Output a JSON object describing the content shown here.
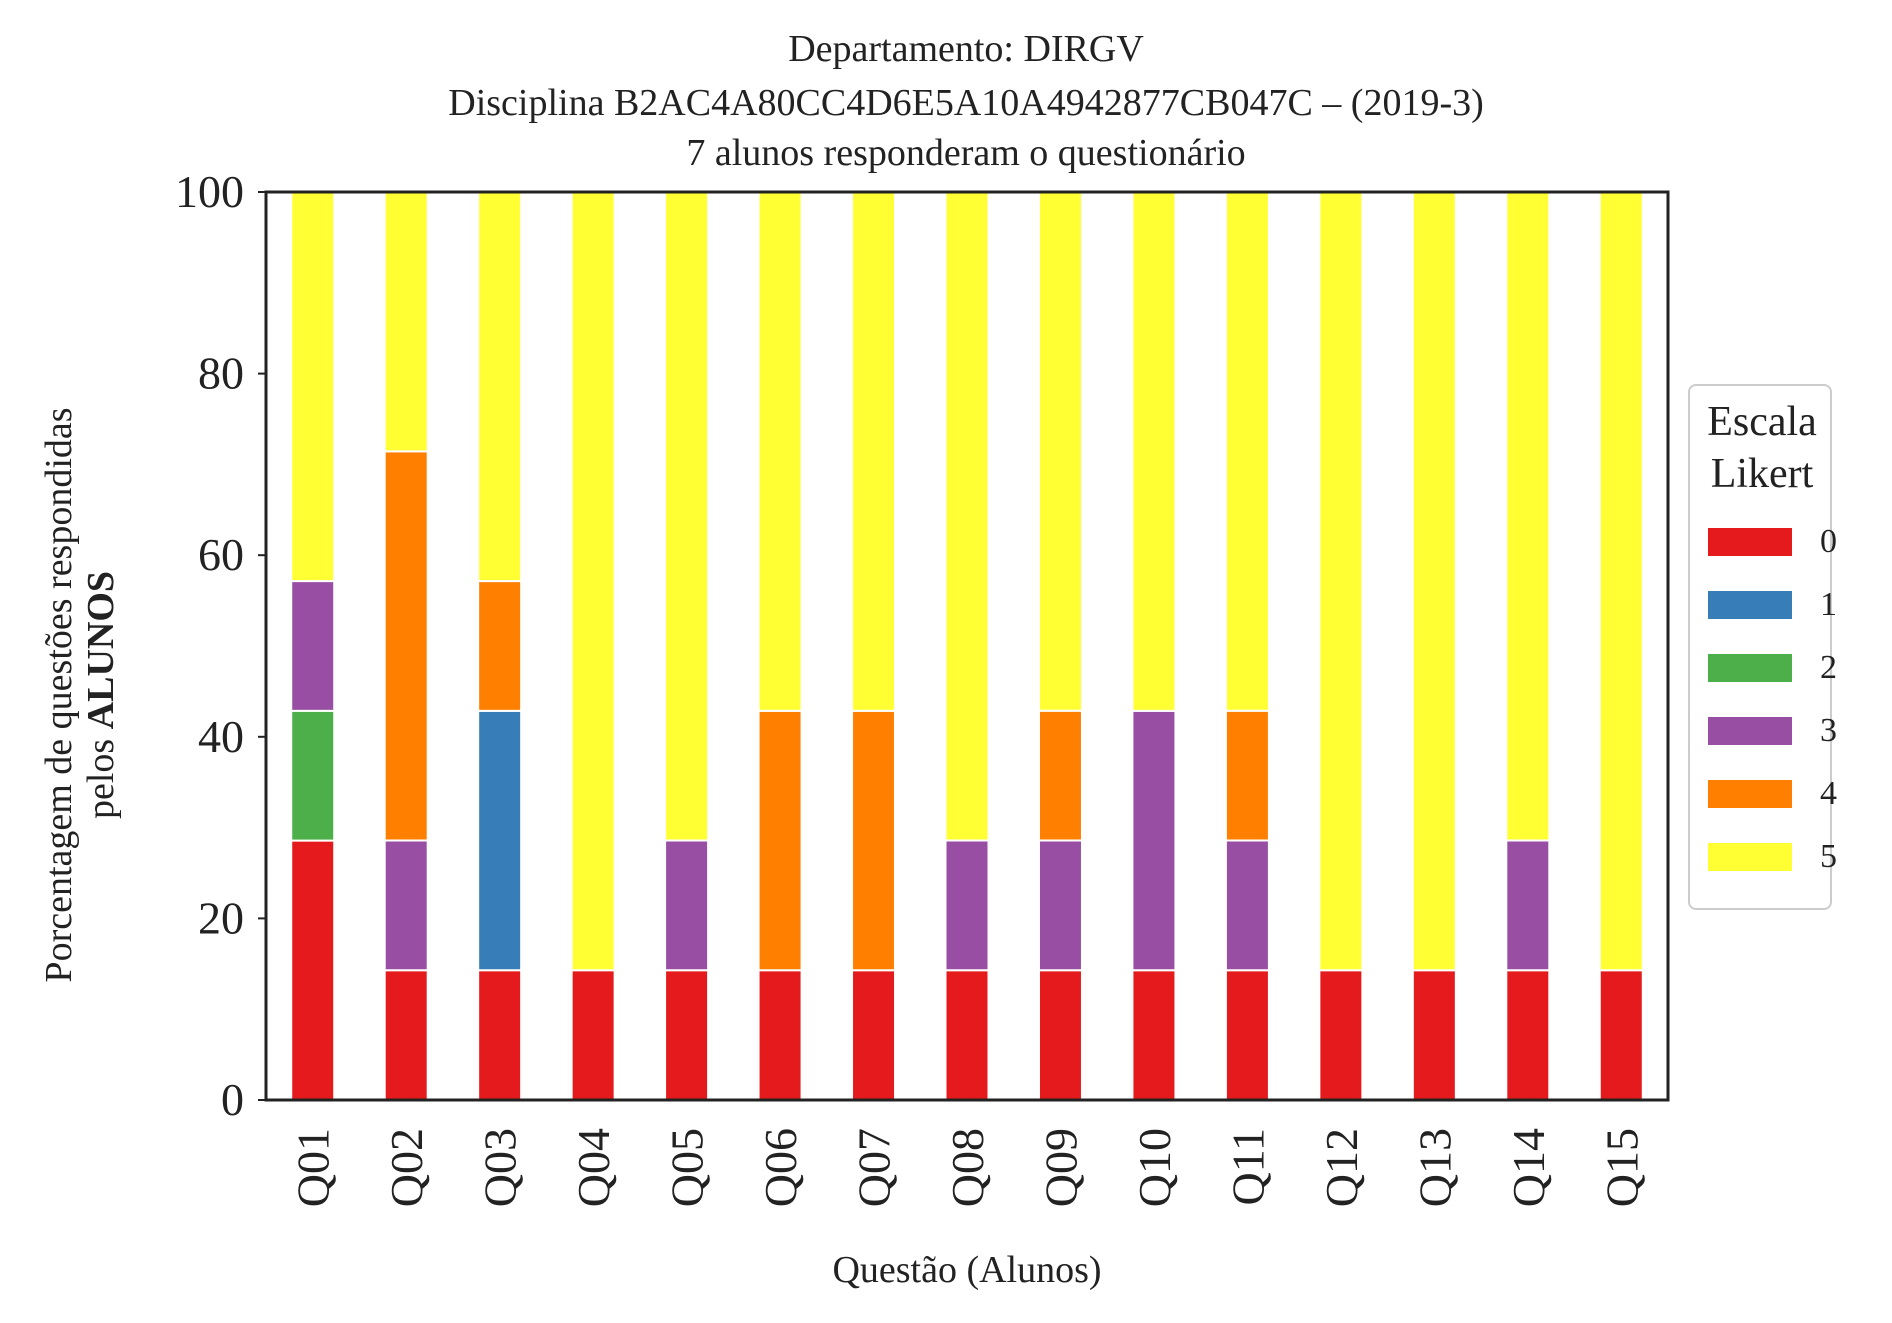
{
  "chart_data": {
    "type": "bar",
    "stacked": true,
    "title_lines": [
      "Departamento: DIRGV",
      "Disciplina B2AC4A80CC4D6E5A10A4942877CB047C – (2019-3)",
      "7 alunos responderam o questionário"
    ],
    "ylabel_line1": "Porcentagem de questões respondidas",
    "ylabel_line2_prefix": "pelos ",
    "ylabel_line2_bold": "ALUNOS",
    "xlabel": "Questão (Alunos)",
    "ylim": [
      0,
      100
    ],
    "yticks": [
      "0",
      "20",
      "40",
      "60",
      "80",
      "100"
    ],
    "grid": false,
    "categories": [
      "Q01",
      "Q02",
      "Q03",
      "Q04",
      "Q05",
      "Q06",
      "Q07",
      "Q08",
      "Q09",
      "Q10",
      "Q11",
      "Q12",
      "Q13",
      "Q14",
      "Q15"
    ],
    "legend": {
      "title_lines": [
        "Escala",
        "Likert"
      ],
      "placement": "right"
    },
    "series": [
      {
        "name": "0",
        "color": "#e41a1c",
        "values": [
          28.57,
          14.29,
          14.29,
          14.29,
          14.29,
          14.29,
          14.29,
          14.29,
          14.29,
          14.29,
          14.29,
          14.29,
          14.29,
          14.29,
          14.29
        ]
      },
      {
        "name": "1",
        "color": "#377eb8",
        "values": [
          0,
          0,
          28.57,
          0,
          0,
          0,
          0,
          0,
          0,
          0,
          0,
          0,
          0,
          0,
          0
        ]
      },
      {
        "name": "2",
        "color": "#4daf4a",
        "values": [
          14.29,
          0,
          0,
          0,
          0,
          0,
          0,
          0,
          0,
          0,
          0,
          0,
          0,
          0,
          0
        ]
      },
      {
        "name": "3",
        "color": "#984ea3",
        "values": [
          14.29,
          14.29,
          0,
          0,
          14.29,
          0,
          0,
          14.29,
          14.29,
          28.57,
          14.29,
          0,
          0,
          14.29,
          0
        ]
      },
      {
        "name": "4",
        "color": "#ff7f00",
        "values": [
          0,
          42.86,
          14.29,
          0,
          0,
          28.57,
          28.57,
          0,
          14.29,
          0,
          14.29,
          0,
          0,
          0,
          0
        ]
      },
      {
        "name": "5",
        "color": "#ffff33",
        "values": [
          42.86,
          28.57,
          42.86,
          85.71,
          71.43,
          57.14,
          57.14,
          71.43,
          57.14,
          57.14,
          57.14,
          85.71,
          85.71,
          71.43,
          85.71
        ]
      }
    ]
  }
}
